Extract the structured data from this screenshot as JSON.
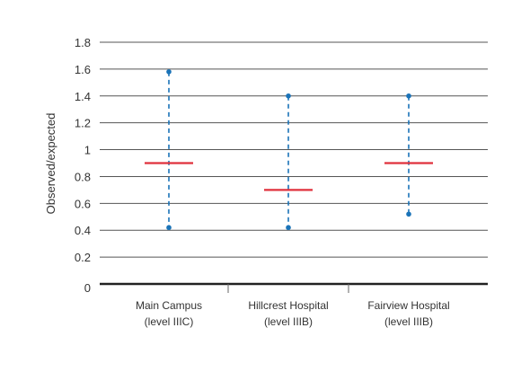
{
  "chart_data": {
    "type": "error-bar",
    "title": "",
    "xlabel": "",
    "ylabel": "Observed/expected",
    "ylim": [
      0,
      1.8
    ],
    "yticks": [
      0,
      0.2,
      0.4,
      0.6,
      0.8,
      1,
      1.2,
      1.4,
      1.6,
      1.8
    ],
    "yticks_labels": [
      "0",
      "0.2",
      "0.4",
      "0.6",
      "0.8",
      "1",
      "1.2",
      "1.4",
      "1.6",
      "1.8"
    ],
    "grid": true,
    "categories": [
      {
        "line1": "Main Campus",
        "line2": "(level IIIC)"
      },
      {
        "line1": "Hillcrest Hospital",
        "line2": "(level IIIB)"
      },
      {
        "line1": "Fairview Hospital",
        "line2": "(level IIIB)"
      }
    ],
    "series": [
      {
        "estimate": [
          0.9,
          0.7,
          0.9
        ],
        "lower": [
          0.42,
          0.42,
          0.52
        ],
        "upper": [
          1.58,
          1.4,
          1.4
        ]
      }
    ],
    "colors": {
      "estimate": "#e0303c",
      "interval": "#1a73b8",
      "grid": "#555555",
      "axis": "#222222"
    }
  }
}
